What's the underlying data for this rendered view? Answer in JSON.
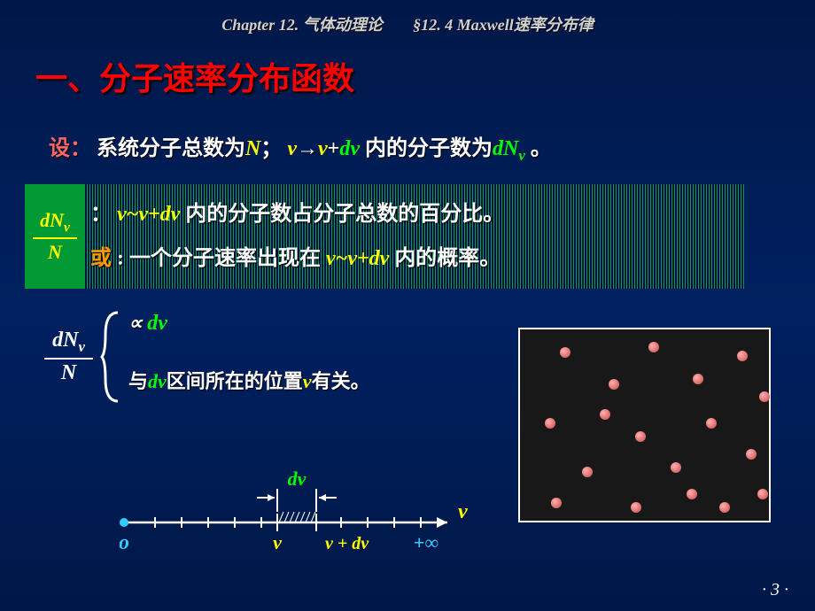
{
  "header": {
    "chapter": "Chapter 12. 气体动理论",
    "section": "§12. 4 Maxwell速率分布律"
  },
  "title": "一、分子速率分布函数",
  "line1": {
    "prefix": "设：",
    "t1": "系统分子总数为",
    "N": "N",
    "sep": "；",
    "v1": "v",
    "arrow": "→",
    "v2": "v",
    "plus": "+",
    "dv": "dv",
    "t2": "内的分子数为",
    "dN": "dN",
    "sub": "v",
    "end": " 。"
  },
  "fraction": {
    "num_d": "d",
    "num_N": "N",
    "num_sub": "v",
    "den": "N"
  },
  "box": {
    "colon": "：",
    "seg1": "v~v+dv",
    "seg2": " 内的分子数占分子总数的百分比。",
    "or": "或",
    "colon2": " : ",
    "seg3": "一个分子速率出现在 ",
    "seg4": " v~v+dv ",
    "seg5": "内的概率。"
  },
  "brace": {
    "top_prop": "∝",
    "top_dv": " dv",
    "bot1": "与",
    "bot_dv": "dv",
    "bot2": "区间所在的位置",
    "bot_v": "v",
    "bot3": "有关。"
  },
  "axis": {
    "dv_label": "dv",
    "o": "o",
    "v": "v",
    "vlabel": "v",
    "vplus": "v + dv",
    "inf": "+∞"
  },
  "particles": {
    "box_bg": "#181818",
    "dot_color": "#e07070",
    "positions": [
      [
        45,
        20
      ],
      [
        145,
        14
      ],
      [
        245,
        24
      ],
      [
        100,
        56
      ],
      [
        195,
        50
      ],
      [
        270,
        70
      ],
      [
        28,
        100
      ],
      [
        130,
        115
      ],
      [
        210,
        100
      ],
      [
        70,
        155
      ],
      [
        170,
        150
      ],
      [
        255,
        135
      ],
      [
        35,
        190
      ],
      [
        125,
        195
      ],
      [
        225,
        195
      ],
      [
        268,
        180
      ],
      [
        90,
        90
      ],
      [
        188,
        180
      ]
    ]
  },
  "colors": {
    "bg_top": "#001848",
    "bg_mid": "#002060",
    "red": "#ff0000",
    "red_soft": "#ff6666",
    "white": "#ffffff",
    "yellow": "#ffff00",
    "green": "#00ff00",
    "orange": "#ff9900",
    "blue": "#33ccff",
    "green_solid": "#009933",
    "green_stripe": "#00a050"
  },
  "page": "· 3 ·"
}
